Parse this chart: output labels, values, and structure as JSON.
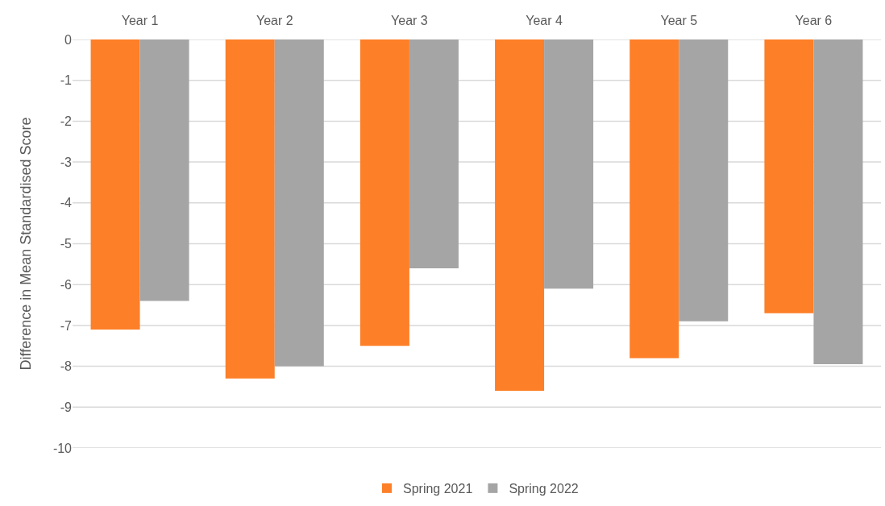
{
  "chart_data": {
    "type": "bar",
    "ylabel": "Difference in Mean Standardised Score",
    "categories": [
      "Year 1",
      "Year 2",
      "Year 3",
      "Year 4",
      "Year 5",
      "Year 6"
    ],
    "series": [
      {
        "name": "Spring 2021",
        "color": "#fd7f28",
        "values": [
          -7.1,
          -8.3,
          -7.5,
          -8.6,
          -7.8,
          -6.7
        ]
      },
      {
        "name": "Spring 2022",
        "color": "#a5a5a5",
        "values": [
          -6.4,
          -8.0,
          -5.6,
          -6.1,
          -6.9,
          -7.95
        ]
      }
    ],
    "ylim": [
      -10,
      0
    ],
    "yticks": [
      -10,
      -9,
      -8,
      -7,
      -6,
      -5,
      -4,
      -3,
      -2,
      -1,
      0
    ],
    "grid": "y",
    "legend": "bottom"
  }
}
